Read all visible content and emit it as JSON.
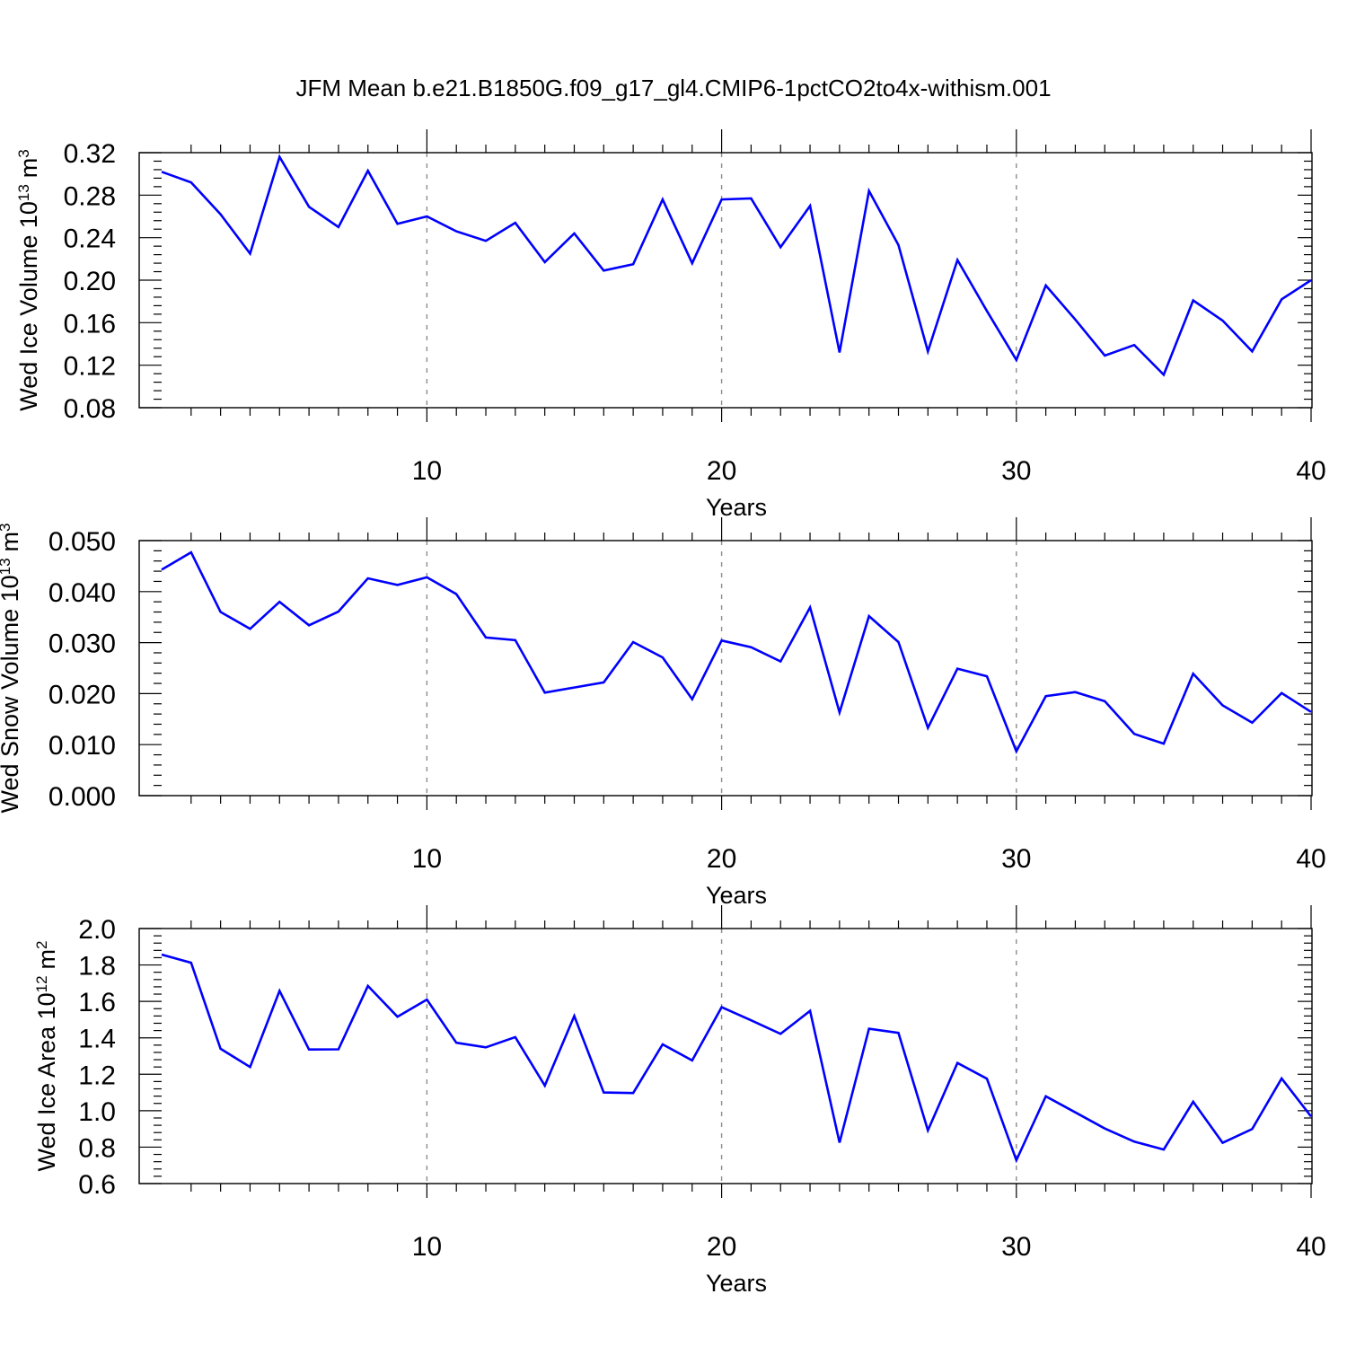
{
  "page": {
    "title": "JFM Mean b.e21.B1850G.f09_g17_gl4.CMIP6-1pctCO2to4x-withism.001"
  },
  "chart_data": [
    {
      "type": "line",
      "xlabel": "Years",
      "ylabel": "Wed Ice Volume 10",
      "ylabel_exp": "13",
      "ylabel_unit": "m",
      "ylabel_unit_exp": "3",
      "xlim": [
        1,
        40
      ],
      "ylim": [
        0.08,
        0.32
      ],
      "yticks": [
        0.08,
        0.12,
        0.16,
        0.2,
        0.24,
        0.28,
        0.32
      ],
      "yticklabels": [
        "0.08",
        "0.12",
        "0.16",
        "0.20",
        "0.24",
        "0.28",
        "0.32"
      ],
      "ytick_minor_step": 0.008,
      "xticks": [
        10,
        20,
        30,
        40
      ],
      "xticklabels": [
        "10",
        "20",
        "30",
        "40"
      ],
      "x_minor_step": 1,
      "grid_x": [
        10,
        20,
        30
      ],
      "color": "#0000ff",
      "x": [
        1,
        2,
        3,
        4,
        5,
        6,
        7,
        8,
        9,
        10,
        11,
        12,
        13,
        14,
        15,
        16,
        17,
        18,
        19,
        20,
        21,
        22,
        23,
        24,
        25,
        26,
        27,
        28,
        29,
        30,
        31,
        32,
        33,
        34,
        35,
        36,
        37,
        38,
        39,
        40
      ],
      "values": [
        0.302,
        0.292,
        0.262,
        0.225,
        0.316,
        0.269,
        0.25,
        0.303,
        0.253,
        0.26,
        0.246,
        0.237,
        0.254,
        0.217,
        0.244,
        0.209,
        0.215,
        0.276,
        0.216,
        0.276,
        0.277,
        0.231,
        0.27,
        0.132,
        0.284,
        0.233,
        0.133,
        0.219,
        0.171,
        0.125,
        0.195,
        0.163,
        0.129,
        0.139,
        0.111,
        0.181,
        0.162,
        0.133,
        0.182,
        0.2
      ]
    },
    {
      "type": "line",
      "xlabel": "Years",
      "ylabel": "Wed Snow Volume 10",
      "ylabel_exp": "13",
      "ylabel_unit": "m",
      "ylabel_unit_exp": "3",
      "xlim": [
        1,
        40
      ],
      "ylim": [
        0.0,
        0.05
      ],
      "yticks": [
        0.0,
        0.01,
        0.02,
        0.03,
        0.04,
        0.05
      ],
      "yticklabels": [
        "0.000",
        "0.010",
        "0.020",
        "0.030",
        "0.040",
        "0.050"
      ],
      "ytick_minor_step": 0.002,
      "xticks": [
        10,
        20,
        30,
        40
      ],
      "xticklabels": [
        "10",
        "20",
        "30",
        "40"
      ],
      "x_minor_step": 1,
      "grid_x": [
        10,
        20,
        30
      ],
      "color": "#0000ff",
      "x": [
        1,
        2,
        3,
        4,
        5,
        6,
        7,
        8,
        9,
        10,
        11,
        12,
        13,
        14,
        15,
        16,
        17,
        18,
        19,
        20,
        21,
        22,
        23,
        24,
        25,
        26,
        27,
        28,
        29,
        30,
        31,
        32,
        33,
        34,
        35,
        36,
        37,
        38,
        39,
        40
      ],
      "values": [
        0.0443,
        0.0477,
        0.036,
        0.0327,
        0.038,
        0.0334,
        0.0361,
        0.0426,
        0.0413,
        0.0428,
        0.0395,
        0.031,
        0.0305,
        0.0202,
        0.0212,
        0.0222,
        0.0301,
        0.0271,
        0.0189,
        0.0304,
        0.0291,
        0.0263,
        0.0369,
        0.0163,
        0.0352,
        0.0301,
        0.0133,
        0.0249,
        0.0234,
        0.0087,
        0.0195,
        0.0203,
        0.0185,
        0.0121,
        0.0102,
        0.0239,
        0.0177,
        0.0143,
        0.0201,
        0.0164
      ]
    },
    {
      "type": "line",
      "xlabel": "Years",
      "ylabel": "Wed Ice Area 10",
      "ylabel_exp": "12",
      "ylabel_unit": "m",
      "ylabel_unit_exp": "2",
      "xlim": [
        1,
        40
      ],
      "ylim": [
        0.6,
        2.0
      ],
      "yticks": [
        0.6,
        0.8,
        1.0,
        1.2,
        1.4,
        1.6,
        1.8,
        2.0
      ],
      "yticklabels": [
        "0.6",
        "0.8",
        "1.0",
        "1.2",
        "1.4",
        "1.6",
        "1.8",
        "2.0"
      ],
      "ytick_minor_step": 0.04,
      "xticks": [
        10,
        20,
        30,
        40
      ],
      "xticklabels": [
        "10",
        "20",
        "30",
        "40"
      ],
      "x_minor_step": 1,
      "grid_x": [
        10,
        20,
        30
      ],
      "color": "#0000ff",
      "x": [
        1,
        2,
        3,
        4,
        5,
        6,
        7,
        8,
        9,
        10,
        11,
        12,
        13,
        14,
        15,
        16,
        17,
        18,
        19,
        20,
        21,
        22,
        23,
        24,
        25,
        26,
        27,
        28,
        29,
        30,
        31,
        32,
        33,
        34,
        35,
        36,
        37,
        38,
        39,
        40
      ],
      "values": [
        1.857,
        1.812,
        1.34,
        1.24,
        1.658,
        1.336,
        1.337,
        1.685,
        1.516,
        1.61,
        1.373,
        1.348,
        1.404,
        1.138,
        1.52,
        1.1,
        1.097,
        1.364,
        1.276,
        1.568,
        1.496,
        1.422,
        1.548,
        0.825,
        1.45,
        1.427,
        0.892,
        1.262,
        1.176,
        0.728,
        1.079,
        0.991,
        0.902,
        0.83,
        0.787,
        1.049,
        0.824,
        0.899,
        1.177,
        0.968
      ]
    }
  ]
}
